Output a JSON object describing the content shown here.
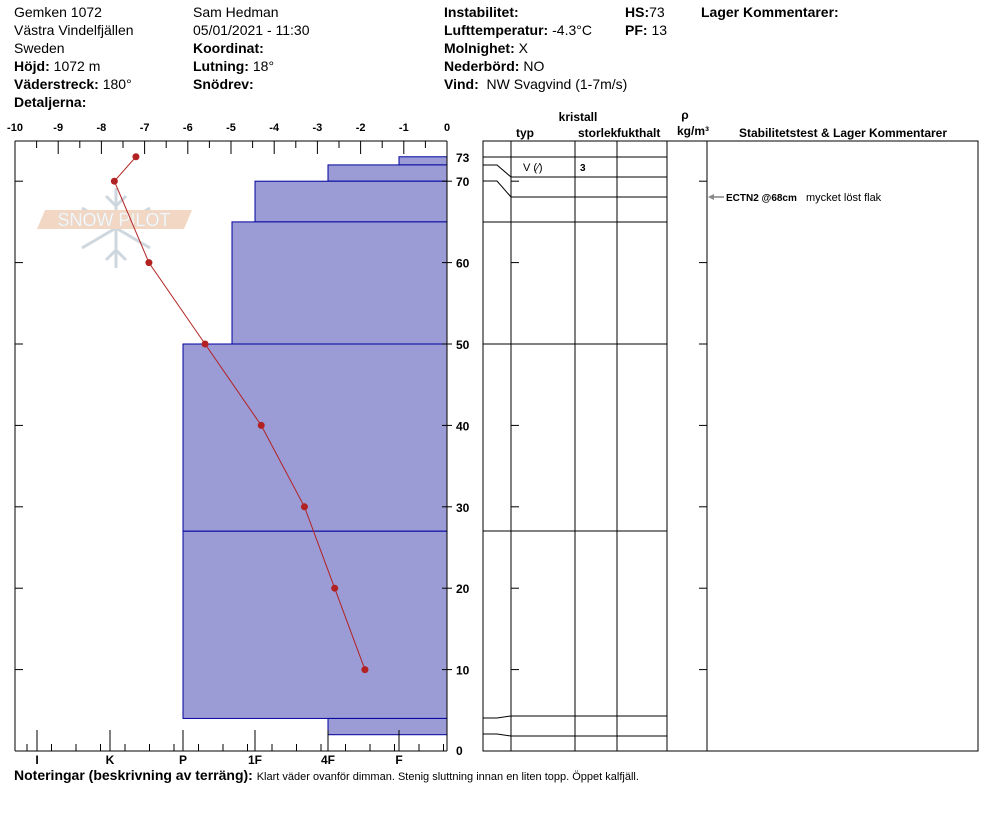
{
  "header": {
    "location": "Gemken 1072",
    "region": "Västra Vindelfjällen",
    "country": "Sweden",
    "elevation_label": "Höjd:",
    "elevation": "1072 m",
    "aspect_label": "Väderstreck:",
    "aspect": "180°",
    "details_label": "Detaljerna:",
    "observer": "Sam Hedman",
    "datetime": "05/01/2021 - 11:30",
    "coord_label": "Koordinat:",
    "slope_label": "Lutning:",
    "slope": "18°",
    "drift_label": "Snödrev:",
    "instability_label": "Instabilitet:",
    "airtemp_label": "Lufttemperatur:",
    "airtemp": "-4.3°C",
    "clouds_label": "Molnighet:",
    "clouds": "X",
    "precip_label": "Nederbörd:",
    "precip": "NO",
    "wind_label": "Vind:",
    "wind": "NW Svagvind (1-7m/s)",
    "hs_label": "HS:",
    "hs": "73",
    "pf_label": "PF:",
    "pf": "13",
    "layer_comments_label": "Lager Kommentarer:"
  },
  "table": {
    "crystal": "kristall",
    "type": "typ",
    "size": "storlek",
    "moisture": "fukthalt",
    "rho": "ρ",
    "density_unit": "kg/m³",
    "comments": "Stabilitetstest & Lager Kommentarer",
    "layer_rows": [
      {
        "type": "V (⁄)",
        "size": "3"
      }
    ],
    "test_comment": {
      "test": "ECTN2 @68cm",
      "note": "mycket löst flak"
    }
  },
  "notes": {
    "label": "Noteringar (beskrivning av terräng):",
    "text": "Klart väder ovanför dimman. Stenig sluttning innan en liten topp. Öppet kalfjäll."
  },
  "logo": "SNOW PILOT",
  "colors": {
    "layer_fill": "#9b9bd5",
    "layer_stroke": "#0000a0",
    "temp": "#b22222"
  },
  "chart_data": {
    "type": "snow-profile",
    "temp_axis": {
      "range": [
        -10,
        0
      ],
      "ticks": [
        "-10",
        "-9",
        "-8",
        "-7",
        "-6",
        "-5",
        "-4",
        "-3",
        "-2",
        "-1",
        "0"
      ]
    },
    "depth_axis": {
      "range": [
        0,
        73
      ],
      "ticks": [
        "0",
        "10",
        "20",
        "30",
        "40",
        "50",
        "60",
        "70",
        "73"
      ]
    },
    "hardness_axis": {
      "ticks": [
        "I",
        "K",
        "P",
        "1F",
        "4F",
        "F"
      ]
    },
    "temperature_profile": [
      {
        "depth": 73,
        "temp": -7.2
      },
      {
        "depth": 70,
        "temp": -7.7
      },
      {
        "depth": 60,
        "temp": -6.9
      },
      {
        "depth": 50,
        "temp": -5.6
      },
      {
        "depth": 40,
        "temp": -4.3
      },
      {
        "depth": 30,
        "temp": -3.3
      },
      {
        "depth": 20,
        "temp": -2.6
      },
      {
        "depth": 10,
        "temp": -1.9
      }
    ],
    "layers": [
      {
        "top": 73,
        "bottom": 72,
        "hardness": "F"
      },
      {
        "top": 72,
        "bottom": 70,
        "hardness": "4F"
      },
      {
        "top": 70,
        "bottom": 65,
        "hardness": "1F"
      },
      {
        "top": 65,
        "bottom": 50,
        "hardness": "1F-"
      },
      {
        "top": 50,
        "bottom": 27,
        "hardness": "P"
      },
      {
        "top": 27,
        "bottom": 4,
        "hardness": "P"
      },
      {
        "top": 4,
        "bottom": 2,
        "hardness": "4F"
      }
    ],
    "stability_test_depth": 68
  }
}
